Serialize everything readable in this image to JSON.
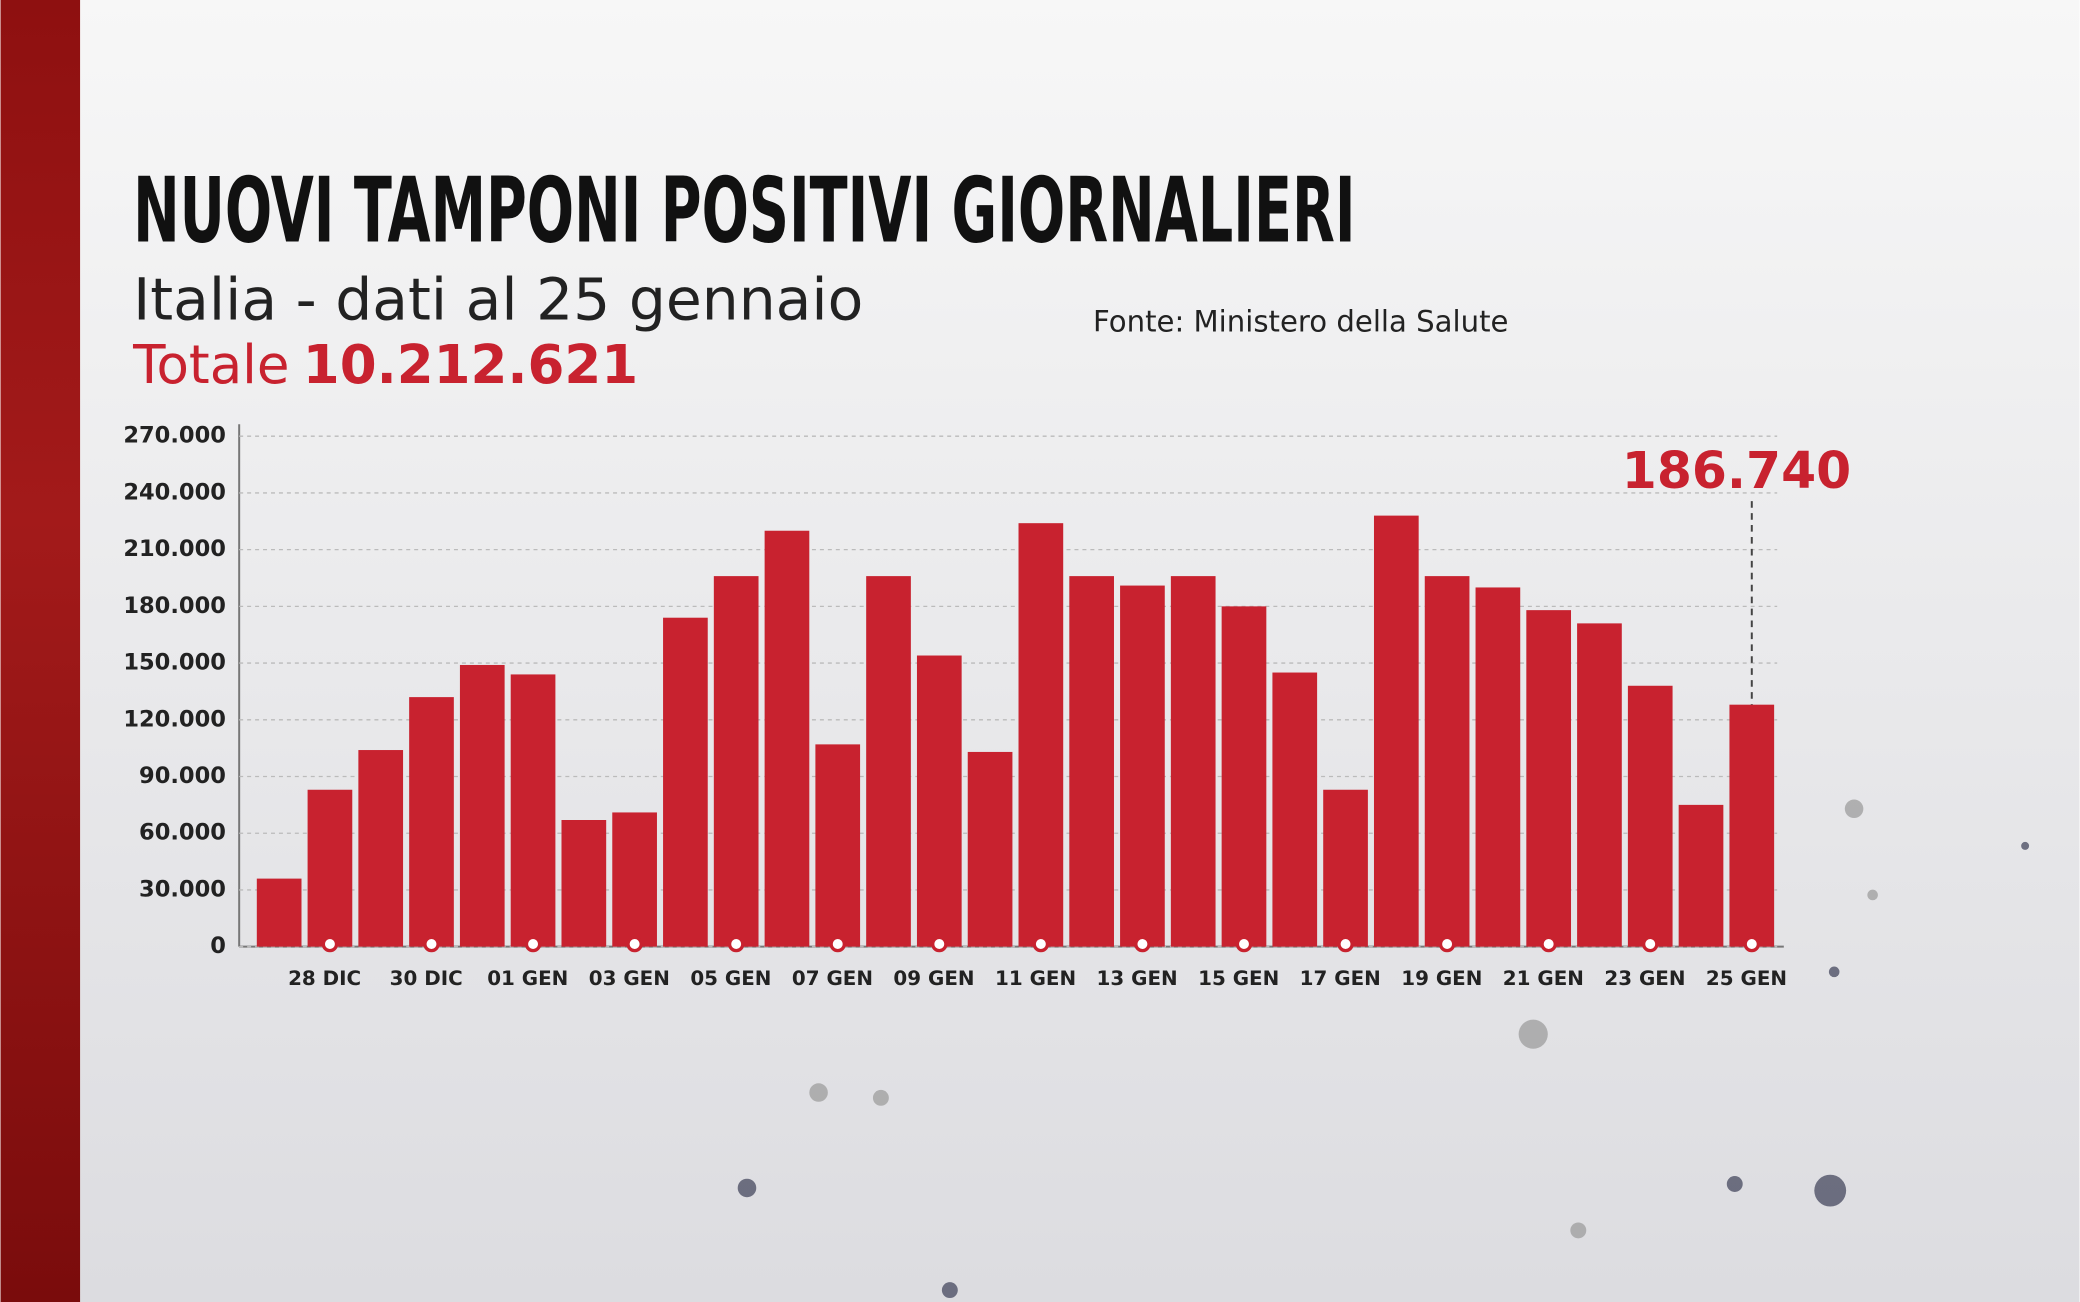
{
  "chart_data": {
    "type": "bar",
    "title": "NUOVI TAMPONI POSITIVI GIORNALIERI",
    "subtitle": "Italia - dati al 25 gennaio",
    "total_label": "Totale",
    "total_value": "10.212.621",
    "source": "Fonte: Ministero della Salute",
    "annotation": "186.740",
    "categories": [
      null,
      "28 DIC",
      null,
      "30 DIC",
      null,
      "01 GEN",
      null,
      "03 GEN",
      null,
      "05 GEN",
      null,
      "07 GEN",
      null,
      "09 GEN",
      null,
      "11 GEN",
      null,
      "13 GEN",
      null,
      "15 GEN",
      null,
      "17 GEN",
      null,
      "19 GEN",
      null,
      "21 GEN",
      null,
      "23 GEN",
      null,
      "25 GEN"
    ],
    "values": [
      36000,
      83000,
      104000,
      132000,
      149000,
      144000,
      67000,
      71000,
      174000,
      196000,
      220000,
      107000,
      196000,
      154000,
      103000,
      224000,
      196000,
      191000,
      196000,
      180000,
      145000,
      83000,
      228000,
      196000,
      190000,
      178000,
      171000,
      138000,
      75000,
      128000
    ],
    "color": "#c8222f",
    "ylim": [
      0,
      270000
    ],
    "yticks": [
      0,
      {
        "value": 30000,
        "label": "30.000"
      },
      {
        "value": 60000,
        "label": "60.000"
      },
      {
        "value": 90000,
        "label": "90.000"
      },
      {
        "value": 120000,
        "label": "120.000"
      },
      {
        "value": 150000,
        "label": "150.000"
      },
      {
        "value": 180000,
        "label": "180.000"
      },
      {
        "value": 210000,
        "label": "210.000"
      },
      {
        "value": 240000,
        "label": "240.000"
      },
      {
        "value": 270000,
        "label": "270.000"
      }
    ],
    "grid": true
  }
}
